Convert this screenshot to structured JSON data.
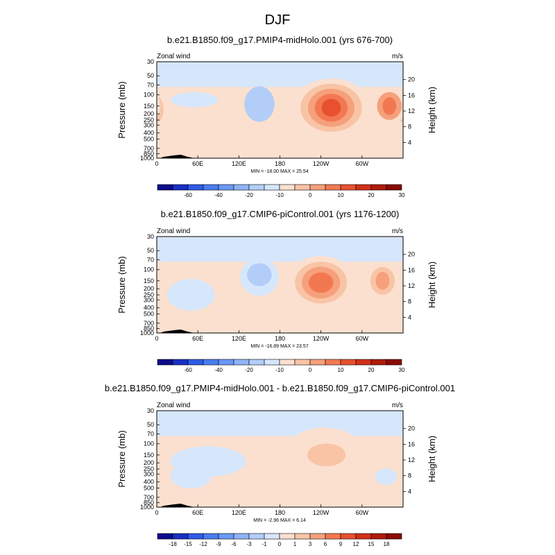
{
  "figure": {
    "title": "DJF"
  },
  "chart_data": [
    {
      "type": "heatmap",
      "title": "b.e21.B1850.f09_g17.PMIP4-midHolo.001 (yrs 676-700)",
      "left_label": "Zonal wind",
      "right_label": "m/s",
      "ylabel": "Pressure (mb)",
      "ylabel_right": "Height (km)",
      "xlabel": "",
      "x_ticks": [
        "0",
        "60E",
        "120E",
        "180",
        "120W",
        "60W"
      ],
      "x_values": [
        0,
        60,
        120,
        180,
        240,
        300
      ],
      "xlim": [
        0,
        360
      ],
      "y_ticks": [
        "30",
        "50",
        "70",
        "100",
        "150",
        "200",
        "250",
        "300",
        "400",
        "500",
        "700",
        "850",
        "1000"
      ],
      "y_values": [
        30,
        50,
        70,
        100,
        150,
        200,
        250,
        300,
        400,
        500,
        700,
        850,
        1000
      ],
      "ylim": [
        1000,
        30
      ],
      "y_scale": "log",
      "height_ticks": [
        "20",
        "16",
        "12",
        "8",
        "4"
      ],
      "height_values": [
        20,
        16,
        12,
        8,
        4
      ],
      "min_max_text": "MIN = -18.00  MAX =  25.54",
      "colorbar_ticks": [
        "-60",
        "-40",
        "-20",
        "-10",
        "0",
        "10",
        "20",
        "30"
      ],
      "colorbar_levels": [
        -70,
        -60,
        -50,
        -40,
        -30,
        -20,
        -15,
        -10,
        -5,
        0,
        5,
        10,
        15,
        20,
        25,
        30
      ],
      "colorbar_colors": [
        "#0c0c8c",
        "#1a2fc4",
        "#2f5be8",
        "#4a7cf0",
        "#6b98f5",
        "#8fb3f7",
        "#b3cdf9",
        "#d6e6fb",
        "#fbe0cf",
        "#f9c4a6",
        "#f6a07c",
        "#f27852",
        "#e8502f",
        "#d23018",
        "#b01a0c",
        "#8a0a04"
      ],
      "features": [
        {
          "lon": 150,
          "p": 140,
          "rlon": 22,
          "rdec": 0.28,
          "level": -2
        },
        {
          "lon": 55,
          "p": 120,
          "rlon": 35,
          "rdec": 0.12,
          "level": -1
        },
        {
          "lon": 0,
          "p": 170,
          "rlon": 10,
          "rdec": 0.2,
          "level": 2
        },
        {
          "lon": 255,
          "p": 160,
          "rlon": 58,
          "rdec": 0.46,
          "level": 1
        },
        {
          "lon": 255,
          "p": 160,
          "rlon": 45,
          "rdec": 0.38,
          "level": 2
        },
        {
          "lon": 255,
          "p": 160,
          "rlon": 34,
          "rdec": 0.3,
          "level": 3
        },
        {
          "lon": 255,
          "p": 160,
          "rlon": 24,
          "rdec": 0.22,
          "level": 4
        },
        {
          "lon": 255,
          "p": 160,
          "rlon": 14,
          "rdec": 0.14,
          "level": 5
        },
        {
          "lon": 340,
          "p": 150,
          "rlon": 25,
          "rdec": 0.3,
          "level": 1
        },
        {
          "lon": 340,
          "p": 150,
          "rlon": 18,
          "rdec": 0.22,
          "level": 3
        },
        {
          "lon": 340,
          "p": 150,
          "rlon": 10,
          "rdec": 0.14,
          "level": 4
        },
        {
          "lon": 130,
          "p": 640,
          "rlon": 25,
          "rdec": 0.07,
          "level": 1
        }
      ]
    },
    {
      "type": "heatmap",
      "title": "b.e21.B1850.f09_g17.CMIP6-piControl.001 (yrs 1176-1200)",
      "left_label": "Zonal wind",
      "right_label": "m/s",
      "ylabel": "Pressure (mb)",
      "ylabel_right": "Height (km)",
      "xlabel": "",
      "x_ticks": [
        "0",
        "60E",
        "120E",
        "180",
        "120W",
        "60W"
      ],
      "x_values": [
        0,
        60,
        120,
        180,
        240,
        300
      ],
      "xlim": [
        0,
        360
      ],
      "y_ticks": [
        "30",
        "50",
        "70",
        "100",
        "150",
        "200",
        "250",
        "300",
        "400",
        "500",
        "700",
        "850",
        "1000"
      ],
      "y_values": [
        30,
        50,
        70,
        100,
        150,
        200,
        250,
        300,
        400,
        500,
        700,
        850,
        1000
      ],
      "ylim": [
        1000,
        30
      ],
      "y_scale": "log",
      "height_ticks": [
        "20",
        "16",
        "12",
        "8",
        "4"
      ],
      "height_values": [
        20,
        16,
        12,
        8,
        4
      ],
      "min_max_text": "MIN = -16.89  MAX =  23.57",
      "colorbar_ticks": [
        "-60",
        "-40",
        "-20",
        "-10",
        "0",
        "10",
        "20",
        "30"
      ],
      "colorbar_levels": [
        -70,
        -60,
        -50,
        -40,
        -30,
        -20,
        -15,
        -10,
        -5,
        0,
        5,
        10,
        15,
        20,
        25,
        30
      ],
      "colorbar_colors": [
        "#0c0c8c",
        "#1a2fc4",
        "#2f5be8",
        "#4a7cf0",
        "#6b98f5",
        "#8fb3f7",
        "#b3cdf9",
        "#d6e6fb",
        "#fbe0cf",
        "#f9c4a6",
        "#f6a07c",
        "#f27852",
        "#e8502f",
        "#d23018",
        "#b01a0c",
        "#8a0a04"
      ],
      "features": [
        {
          "lon": 150,
          "p": 130,
          "rlon": 28,
          "rdec": 0.3,
          "level": -1
        },
        {
          "lon": 150,
          "p": 120,
          "rlon": 18,
          "rdec": 0.18,
          "level": -2
        },
        {
          "lon": 50,
          "p": 250,
          "rlon": 35,
          "rdec": 0.25,
          "level": -1
        },
        {
          "lon": 0,
          "p": 170,
          "rlon": 10,
          "rdec": 0.22,
          "level": 1
        },
        {
          "lon": 240,
          "p": 160,
          "rlon": 50,
          "rdec": 0.42,
          "level": 1
        },
        {
          "lon": 240,
          "p": 160,
          "rlon": 38,
          "rdec": 0.33,
          "level": 2
        },
        {
          "lon": 240,
          "p": 160,
          "rlon": 28,
          "rdec": 0.25,
          "level": 3
        },
        {
          "lon": 240,
          "p": 160,
          "rlon": 18,
          "rdec": 0.16,
          "level": 4
        },
        {
          "lon": 330,
          "p": 150,
          "rlon": 26,
          "rdec": 0.3,
          "level": 1
        },
        {
          "lon": 330,
          "p": 150,
          "rlon": 18,
          "rdec": 0.22,
          "level": 2
        },
        {
          "lon": 330,
          "p": 150,
          "rlon": 10,
          "rdec": 0.14,
          "level": 3
        },
        {
          "lon": 130,
          "p": 640,
          "rlon": 35,
          "rdec": 0.1,
          "level": 1
        }
      ]
    },
    {
      "type": "heatmap",
      "title": "b.e21.B1850.f09_g17.PMIP4-midHolo.001 - b.e21.B1850.f09_g17.CMIP6-piControl.001",
      "left_label": "Zonal wind",
      "right_label": "m/s",
      "ylabel": "Pressure (mb)",
      "ylabel_right": "Height (km)",
      "xlabel": "",
      "x_ticks": [
        "0",
        "60E",
        "120E",
        "180",
        "120W",
        "60W"
      ],
      "x_values": [
        0,
        60,
        120,
        180,
        240,
        300
      ],
      "xlim": [
        0,
        360
      ],
      "y_ticks": [
        "30",
        "50",
        "70",
        "100",
        "150",
        "200",
        "250",
        "300",
        "400",
        "500",
        "700",
        "850",
        "1000"
      ],
      "y_values": [
        30,
        50,
        70,
        100,
        150,
        200,
        250,
        300,
        400,
        500,
        700,
        850,
        1000
      ],
      "ylim": [
        1000,
        30
      ],
      "y_scale": "log",
      "height_ticks": [
        "20",
        "16",
        "12",
        "8",
        "4"
      ],
      "height_values": [
        20,
        16,
        12,
        8,
        4
      ],
      "min_max_text": "MIN = -2.96  MAX =  6.14",
      "colorbar_ticks": [
        "-18",
        "-15",
        "-12",
        "-9",
        "-6",
        "-3",
        "-1",
        "0",
        "1",
        "3",
        "6",
        "9",
        "12",
        "15",
        "18"
      ],
      "colorbar_levels": [
        -18,
        -15,
        -12,
        -9,
        -6,
        -3,
        -1,
        0,
        1,
        3,
        6,
        9,
        12,
        15,
        18
      ],
      "colorbar_colors": [
        "#0c0c8c",
        "#1a2fc4",
        "#2f5be8",
        "#4a7cf0",
        "#6b98f5",
        "#8fb3f7",
        "#b3cdf9",
        "#d6e6fb",
        "#fbe0cf",
        "#f9c4a6",
        "#f6a07c",
        "#f27852",
        "#e8502f",
        "#d23018",
        "#b01a0c",
        "#8a0a04"
      ],
      "features": [
        {
          "lon": 75,
          "p": 190,
          "rlon": 55,
          "rdec": 0.24,
          "level": -1
        },
        {
          "lon": 50,
          "p": 320,
          "rlon": 30,
          "rdec": 0.2,
          "level": -1
        },
        {
          "lon": 335,
          "p": 330,
          "rlon": 16,
          "rdec": 0.13,
          "level": -1
        },
        {
          "lon": 245,
          "p": 160,
          "rlon": 60,
          "rdec": 0.46,
          "level": 1
        },
        {
          "lon": 248,
          "p": 150,
          "rlon": 28,
          "rdec": 0.18,
          "level": 2
        },
        {
          "lon": 90,
          "p": 620,
          "rlon": 30,
          "rdec": 0.06,
          "level": 1
        },
        {
          "lon": 0,
          "p": 170,
          "rlon": 8,
          "rdec": 0.15,
          "level": 1
        }
      ]
    }
  ]
}
